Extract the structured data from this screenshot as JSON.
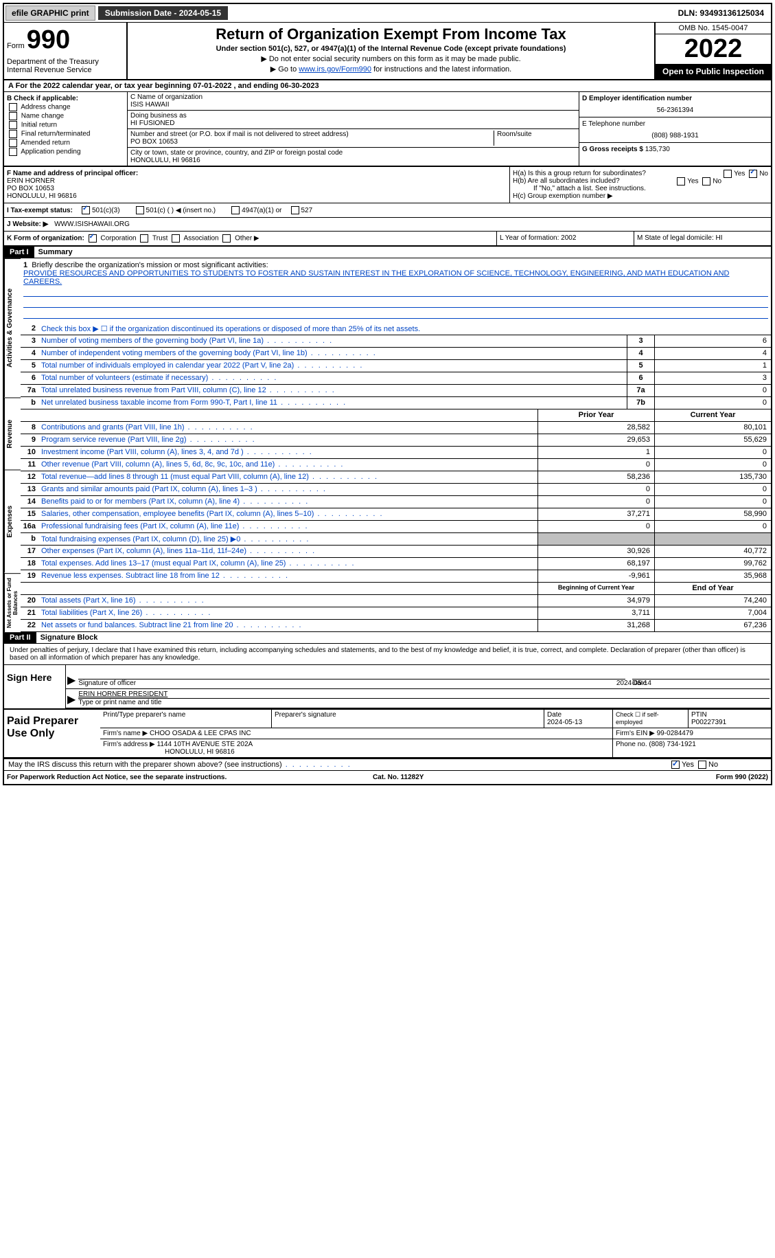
{
  "topbar": {
    "efile": "efile GRAPHIC print",
    "submission": "Submission Date - 2024-05-15",
    "dln": "DLN: 93493136125034"
  },
  "header": {
    "form": "Form",
    "form_num": "990",
    "dept": "Department of the Treasury\nInternal Revenue Service",
    "title": "Return of Organization Exempt From Income Tax",
    "subtitle": "Under section 501(c), 527, or 4947(a)(1) of the Internal Revenue Code (except private foundations)",
    "line1": "▶ Do not enter social security numbers on this form as it may be made public.",
    "line2_pre": "▶ Go to ",
    "line2_link": "www.irs.gov/Form990",
    "line2_post": " for instructions and the latest information.",
    "omb": "OMB No. 1545-0047",
    "year": "2022",
    "open": "Open to Public Inspection"
  },
  "section_a": "A For the 2022 calendar year, or tax year beginning 07-01-2022     , and ending 06-30-2023",
  "col_b": {
    "label": "B Check if applicable:",
    "items": [
      "Address change",
      "Name change",
      "Initial return",
      "Final return/terminated",
      "Amended return",
      "Application pending"
    ]
  },
  "col_c": {
    "name_lbl": "C Name of organization",
    "name": "ISIS HAWAII",
    "dba_lbl": "Doing business as",
    "dba": "HI FUSIONED",
    "addr_lbl": "Number and street (or P.O. box if mail is not delivered to street address)",
    "addr": "PO BOX 10653",
    "room_lbl": "Room/suite",
    "city_lbl": "City or town, state or province, country, and ZIP or foreign postal code",
    "city": "HONOLULU, HI  96816"
  },
  "col_d": {
    "ein_lbl": "D Employer identification number",
    "ein": "56-2361394",
    "tel_lbl": "E Telephone number",
    "tel": "(808) 988-1931",
    "gross_lbl": "G Gross receipts $",
    "gross": "135,730"
  },
  "f": {
    "lbl": "F Name and address of principal officer:",
    "name": "ERIN HORNER",
    "addr1": "PO BOX 10653",
    "addr2": "HONOLULU, HI  96816"
  },
  "h": {
    "a": "H(a)  Is this a group return for subordinates?",
    "b": "H(b)  Are all subordinates included?",
    "b_note": "If \"No,\" attach a list. See instructions.",
    "c": "H(c)  Group exemption number ▶"
  },
  "i": {
    "lbl": "I  Tax-exempt status:",
    "opts": [
      "501(c)(3)",
      "501(c) (  ) ◀ (insert no.)",
      "4947(a)(1) or",
      "527"
    ]
  },
  "j": {
    "lbl": "J  Website: ▶",
    "val": "WWW.ISISHAWAII.ORG"
  },
  "k": {
    "lbl": "K Form of organization:",
    "opts": [
      "Corporation",
      "Trust",
      "Association",
      "Other ▶"
    ],
    "l": "L Year of formation: 2002",
    "m": "M State of legal domicile: HI"
  },
  "part1": {
    "hdr": "Part I",
    "title": "Summary"
  },
  "mission": {
    "lbl": "Briefly describe the organization's mission or most significant activities:",
    "txt": "PROVIDE RESOURCES AND OPPORTUNITIES TO STUDENTS TO FOSTER AND SUSTAIN INTEREST IN THE EXPLORATION OF SCIENCE, TECHNOLOGY, ENGINEERING, AND MATH EDUCATION AND CAREERS."
  },
  "lines": {
    "2": "Check this box ▶ ☐ if the organization discontinued its operations or disposed of more than 25% of its net assets.",
    "3": {
      "t": "Number of voting members of the governing body (Part VI, line 1a)",
      "v": "6"
    },
    "4": {
      "t": "Number of independent voting members of the governing body (Part VI, line 1b)",
      "v": "4"
    },
    "5": {
      "t": "Total number of individuals employed in calendar year 2022 (Part V, line 2a)",
      "v": "1"
    },
    "6": {
      "t": "Total number of volunteers (estimate if necessary)",
      "v": "3"
    },
    "7a": {
      "t": "Total unrelated business revenue from Part VIII, column (C), line 12",
      "v": "0"
    },
    "7b": {
      "t": "Net unrelated business taxable income from Form 990-T, Part I, line 11",
      "v": "0"
    }
  },
  "col_hdrs": {
    "prior": "Prior Year",
    "current": "Current Year",
    "boy": "Beginning of Current Year",
    "eoy": "End of Year"
  },
  "revenue": [
    {
      "n": "8",
      "t": "Contributions and grants (Part VIII, line 1h)",
      "p": "28,582",
      "c": "80,101"
    },
    {
      "n": "9",
      "t": "Program service revenue (Part VIII, line 2g)",
      "p": "29,653",
      "c": "55,629"
    },
    {
      "n": "10",
      "t": "Investment income (Part VIII, column (A), lines 3, 4, and 7d )",
      "p": "1",
      "c": "0"
    },
    {
      "n": "11",
      "t": "Other revenue (Part VIII, column (A), lines 5, 6d, 8c, 9c, 10c, and 11e)",
      "p": "0",
      "c": "0"
    },
    {
      "n": "12",
      "t": "Total revenue—add lines 8 through 11 (must equal Part VIII, column (A), line 12)",
      "p": "58,236",
      "c": "135,730"
    }
  ],
  "expenses": [
    {
      "n": "13",
      "t": "Grants and similar amounts paid (Part IX, column (A), lines 1–3 )",
      "p": "0",
      "c": "0"
    },
    {
      "n": "14",
      "t": "Benefits paid to or for members (Part IX, column (A), line 4)",
      "p": "0",
      "c": "0"
    },
    {
      "n": "15",
      "t": "Salaries, other compensation, employee benefits (Part IX, column (A), lines 5–10)",
      "p": "37,271",
      "c": "58,990"
    },
    {
      "n": "16a",
      "t": "Professional fundraising fees (Part IX, column (A), line 11e)",
      "p": "0",
      "c": "0"
    },
    {
      "n": "b",
      "t": "Total fundraising expenses (Part IX, column (D), line 25) ▶0",
      "p": "",
      "c": "",
      "shaded": true
    },
    {
      "n": "17",
      "t": "Other expenses (Part IX, column (A), lines 11a–11d, 11f–24e)",
      "p": "30,926",
      "c": "40,772"
    },
    {
      "n": "18",
      "t": "Total expenses. Add lines 13–17 (must equal Part IX, column (A), line 25)",
      "p": "68,197",
      "c": "99,762"
    },
    {
      "n": "19",
      "t": "Revenue less expenses. Subtract line 18 from line 12",
      "p": "-9,961",
      "c": "35,968"
    }
  ],
  "netassets": [
    {
      "n": "20",
      "t": "Total assets (Part X, line 16)",
      "p": "34,979",
      "c": "74,240"
    },
    {
      "n": "21",
      "t": "Total liabilities (Part X, line 26)",
      "p": "3,711",
      "c": "7,004"
    },
    {
      "n": "22",
      "t": "Net assets or fund balances. Subtract line 21 from line 20",
      "p": "31,268",
      "c": "67,236"
    }
  ],
  "vtabs": {
    "gov": "Activities & Governance",
    "rev": "Revenue",
    "exp": "Expenses",
    "net": "Net Assets or Fund Balances"
  },
  "part2": {
    "hdr": "Part II",
    "title": "Signature Block"
  },
  "sig": {
    "decl": "Under penalties of perjury, I declare that I have examined this return, including accompanying schedules and statements, and to the best of my knowledge and belief, it is true, correct, and complete. Declaration of preparer (other than officer) is based on all information of which preparer has any knowledge.",
    "sign_here": "Sign Here",
    "sig_officer": "Signature of officer",
    "date": "Date",
    "date_val": "2024-05-14",
    "name_title": "ERIN HORNER  PRESIDENT",
    "type_name": "Type or print name and title"
  },
  "prep": {
    "title": "Paid Preparer Use Only",
    "print_name": "Print/Type preparer's name",
    "sig": "Preparer's signature",
    "date_lbl": "Date",
    "date": "2024-05-13",
    "check": "Check ☐ if self-employed",
    "ptin_lbl": "PTIN",
    "ptin": "P00227391",
    "firm_name_lbl": "Firm's name      ▶",
    "firm_name": "CHOO OSADA & LEE CPAS INC",
    "firm_ein_lbl": "Firm's EIN ▶",
    "firm_ein": "99-0284479",
    "firm_addr_lbl": "Firm's address ▶",
    "firm_addr": "1144 10TH AVENUE STE 202A",
    "firm_city": "HONOLULU, HI  96816",
    "phone_lbl": "Phone no.",
    "phone": "(808) 734-1921"
  },
  "discuss": "May the IRS discuss this return with the preparer shown above? (see instructions)",
  "footer": {
    "left": "For Paperwork Reduction Act Notice, see the separate instructions.",
    "mid": "Cat. No. 11282Y",
    "right": "Form 990 (2022)"
  }
}
